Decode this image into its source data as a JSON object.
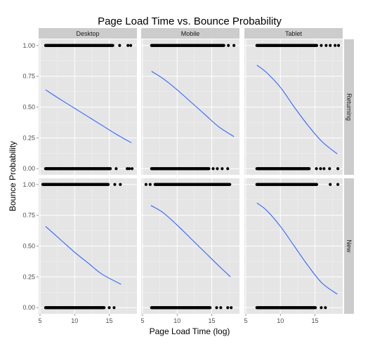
{
  "chart_data": {
    "type": "scatter",
    "title": "Page Load Time vs. Bounce Probability",
    "xlabel": "Page Load Time (log)",
    "ylabel": "Bounce Probability",
    "facet_columns": [
      "Desktop",
      "Mobile",
      "Tablet"
    ],
    "facet_rows": [
      "Returning",
      "New"
    ],
    "x_ticks": [
      5,
      10,
      15
    ],
    "y_ticks": [
      "0.00",
      "0.25",
      "0.50",
      "0.75",
      "1.00"
    ],
    "xlim": [
      4.8,
      19.0
    ],
    "ylim": [
      -0.05,
      1.05
    ],
    "grid": true,
    "colors": {
      "panel_bg": "#e5e5e5",
      "strip_bg": "#cccccc",
      "grid": "#ffffff",
      "curve": "#3366ff",
      "points": "#000000"
    },
    "panels": [
      {
        "row": "Returning",
        "column": "Desktop",
        "curve": {
          "x": [
            5.8,
            8.0,
            10.0,
            12.0,
            14.0,
            16.0,
            18.2
          ],
          "y": [
            0.64,
            0.56,
            0.49,
            0.42,
            0.35,
            0.28,
            0.21
          ]
        },
        "points_y1": {
          "dense_range": [
            5.8,
            15.6
          ],
          "outliers": [
            16.5,
            17.7,
            18.1
          ]
        },
        "points_y0": {
          "dense_range": [
            5.8,
            15.2
          ],
          "outliers": [
            16.0,
            17.6,
            17.9,
            18.3
          ]
        }
      },
      {
        "row": "Returning",
        "column": "Mobile",
        "curve": {
          "x": [
            6.3,
            8.0,
            10.0,
            12.0,
            14.0,
            16.0,
            18.2
          ],
          "y": [
            0.79,
            0.73,
            0.64,
            0.54,
            0.44,
            0.34,
            0.26
          ]
        },
        "points_y1": {
          "dense_range": [
            6.3,
            16.8
          ],
          "outliers": [
            17.4,
            18.2
          ]
        },
        "points_y0": {
          "dense_range": [
            6.3,
            14.6
          ],
          "outliers": [
            15.2,
            15.8,
            16.5,
            17.3
          ]
        }
      },
      {
        "row": "Returning",
        "column": "Tablet",
        "curve": {
          "x": [
            6.6,
            8.0,
            10.0,
            12.0,
            14.0,
            16.0,
            18.2
          ],
          "y": [
            0.84,
            0.78,
            0.66,
            0.5,
            0.35,
            0.22,
            0.12
          ]
        },
        "points_y1": {
          "dense_range": [
            6.6,
            15.3
          ],
          "outliers": [
            15.9,
            16.6,
            17.2,
            17.9,
            18.4
          ]
        },
        "points_y0": {
          "dense_range": [
            6.6,
            14.2
          ],
          "outliers": [
            15.2,
            15.8,
            16.3,
            17.1,
            18.3
          ]
        }
      },
      {
        "row": "New",
        "column": "Desktop",
        "curve": {
          "x": [
            5.8,
            8.0,
            10.0,
            12.0,
            14.0,
            16.7
          ],
          "y": [
            0.66,
            0.55,
            0.45,
            0.36,
            0.27,
            0.19
          ]
        },
        "points_y1": {
          "dense_range": [
            5.4,
            14.9
          ],
          "outliers": [
            15.8,
            16.6
          ]
        },
        "points_y0": {
          "dense_range": [
            5.8,
            14.3
          ],
          "outliers": [
            15.0,
            15.7
          ]
        }
      },
      {
        "row": "New",
        "column": "Mobile",
        "curve": {
          "x": [
            6.2,
            8.0,
            10.0,
            12.0,
            14.0,
            16.0,
            17.7
          ],
          "y": [
            0.83,
            0.77,
            0.67,
            0.56,
            0.45,
            0.34,
            0.25
          ]
        },
        "points_y1": {
          "dense_range": [
            6.8,
            17.6
          ],
          "outliers": [
            5.5,
            6.1
          ]
        },
        "points_y0": {
          "dense_range": [
            6.3,
            14.8
          ],
          "outliers": [
            15.7,
            16.3,
            17.3,
            17.8
          ]
        }
      },
      {
        "row": "New",
        "column": "Tablet",
        "curve": {
          "x": [
            6.6,
            8.0,
            10.0,
            12.0,
            14.0,
            16.0,
            18.2
          ],
          "y": [
            0.85,
            0.79,
            0.66,
            0.5,
            0.34,
            0.2,
            0.11
          ]
        },
        "points_y1": {
          "dense_range": [
            6.6,
            15.3
          ],
          "outliers": [
            17.2,
            18.3
          ]
        },
        "points_y0": {
          "dense_range": [
            6.6,
            15.1
          ],
          "outliers": [
            15.9,
            16.5
          ]
        }
      }
    ]
  }
}
